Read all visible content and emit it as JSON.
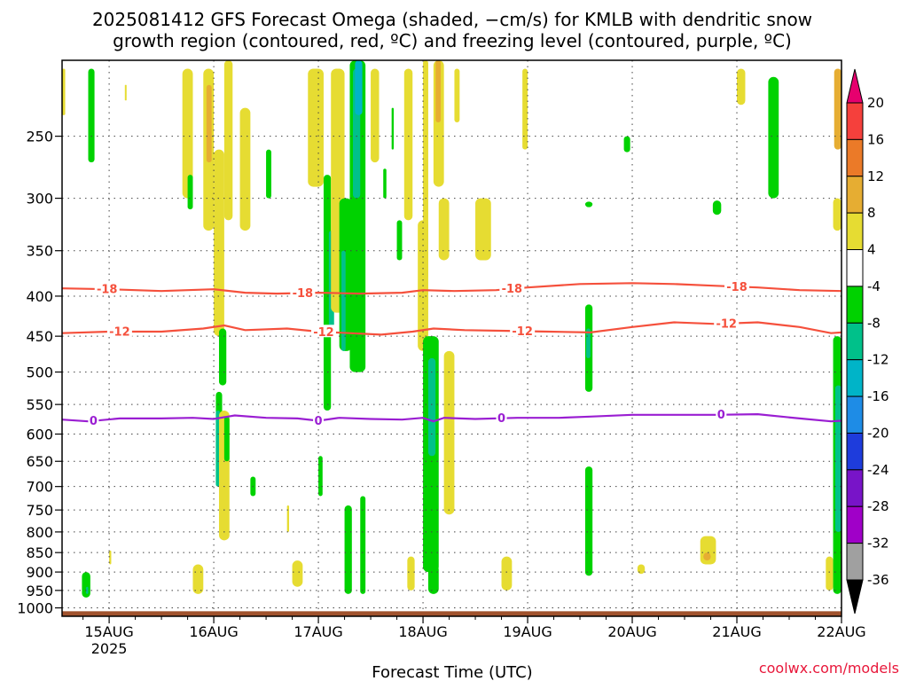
{
  "title": {
    "line1": "2025081412 GFS Forecast Omega (shaded, −cm/s) for KMLB with dendritic snow",
    "line2": "growth region (contoured, red, ºC) and freezing level (contoured, purple, ºC)"
  },
  "credit": "coolwx.com/models",
  "chart_data": {
    "type": "heatmap",
    "xlabel": "Forecast Time (UTC)",
    "ylabel": "",
    "x_ticks": [
      "15AUG",
      "16AUG",
      "17AUG",
      "18AUG",
      "19AUG",
      "20AUG",
      "21AUG",
      "22AUG"
    ],
    "x_year_label": "2025",
    "x_range_days": [
      14.55,
      22.0
    ],
    "y_ticks": [
      250,
      300,
      350,
      400,
      450,
      500,
      550,
      600,
      650,
      700,
      750,
      800,
      850,
      900,
      950,
      1000
    ],
    "y_range_hpa": [
      200,
      1025
    ],
    "y_scale": "log",
    "grid": true,
    "colorbar": {
      "labels": [
        "20",
        "16",
        "12",
        "8",
        "4",
        "-4",
        "-8",
        "-12",
        "-16",
        "-20",
        "-24",
        "-28",
        "-32",
        "-36"
      ],
      "colors": [
        "#e6006e",
        "#f5403c",
        "#eb7a28",
        "#e6ad32",
        "#e6dc32",
        "#ffffff",
        "#00d200",
        "#00c18a",
        "#00b4c8",
        "#1e8ce6",
        "#1e3cdc",
        "#7814c8",
        "#a000c8",
        "#a0a0a0",
        "#000000"
      ]
    },
    "contours": [
      {
        "name": "-18",
        "color": "#f5503c",
        "points": [
          [
            14.55,
            391
          ],
          [
            15.0,
            392
          ],
          [
            15.5,
            394
          ],
          [
            16.0,
            392
          ],
          [
            16.3,
            396
          ],
          [
            16.6,
            397
          ],
          [
            17.0,
            396
          ],
          [
            17.4,
            397
          ],
          [
            17.8,
            396
          ],
          [
            18.0,
            393
          ],
          [
            18.3,
            394
          ],
          [
            18.7,
            393
          ],
          [
            19.0,
            390
          ],
          [
            19.5,
            386
          ],
          [
            20.0,
            385
          ],
          [
            20.4,
            386
          ],
          [
            20.8,
            388
          ],
          [
            21.2,
            390
          ],
          [
            21.6,
            393
          ],
          [
            22.0,
            394
          ]
        ],
        "labels_at": [
          14.98,
          16.85,
          18.85,
          21.0
        ]
      },
      {
        "name": "-12",
        "color": "#f5503c",
        "points": [
          [
            14.55,
            446
          ],
          [
            15.0,
            444
          ],
          [
            15.5,
            444
          ],
          [
            15.9,
            440
          ],
          [
            16.1,
            436
          ],
          [
            16.3,
            442
          ],
          [
            16.7,
            440
          ],
          [
            17.0,
            444
          ],
          [
            17.3,
            446
          ],
          [
            17.6,
            448
          ],
          [
            17.9,
            444
          ],
          [
            18.1,
            440
          ],
          [
            18.4,
            442
          ],
          [
            18.8,
            443
          ],
          [
            19.2,
            444
          ],
          [
            19.6,
            445
          ],
          [
            20.0,
            438
          ],
          [
            20.4,
            432
          ],
          [
            20.8,
            434
          ],
          [
            21.2,
            432
          ],
          [
            21.6,
            438
          ],
          [
            21.9,
            446
          ],
          [
            22.0,
            445
          ]
        ],
        "labels_at": [
          15.1,
          17.05,
          18.95,
          20.9
        ]
      },
      {
        "name": "0",
        "color": "#9a1ed2",
        "points": [
          [
            14.55,
            575
          ],
          [
            14.8,
            578
          ],
          [
            15.1,
            573
          ],
          [
            15.5,
            573
          ],
          [
            15.8,
            572
          ],
          [
            16.0,
            574
          ],
          [
            16.2,
            568
          ],
          [
            16.5,
            572
          ],
          [
            16.8,
            573
          ],
          [
            17.0,
            577
          ],
          [
            17.2,
            572
          ],
          [
            17.5,
            574
          ],
          [
            17.8,
            575
          ],
          [
            18.0,
            572
          ],
          [
            18.1,
            578
          ],
          [
            18.2,
            572
          ],
          [
            18.5,
            574
          ],
          [
            18.9,
            572
          ],
          [
            19.3,
            572
          ],
          [
            19.6,
            570
          ],
          [
            20.0,
            567
          ],
          [
            20.4,
            567
          ],
          [
            20.8,
            567
          ],
          [
            21.2,
            566
          ],
          [
            21.6,
            573
          ],
          [
            21.9,
            578
          ],
          [
            22.0,
            577
          ]
        ],
        "labels_at": [
          14.85,
          17.0,
          18.75,
          20.85
        ]
      }
    ],
    "omega_cells": [
      {
        "t": [
          14.55,
          14.58
        ],
        "p": [
          205,
          235
        ],
        "c": 4
      },
      {
        "t": [
          14.8,
          14.86
        ],
        "p": [
          205,
          270
        ],
        "c": 6
      },
      {
        "t": [
          14.74,
          14.82
        ],
        "p": [
          900,
          970
        ],
        "c": 6
      },
      {
        "t": [
          14.78,
          14.8
        ],
        "p": [
          940,
          960
        ],
        "c": 7
      },
      {
        "t": [
          15.0,
          15.02
        ],
        "p": [
          845,
          880
        ],
        "c": 4
      },
      {
        "t": [
          15.15,
          15.16
        ],
        "p": [
          215,
          225
        ],
        "c": 4
      },
      {
        "t": [
          15.7,
          15.8
        ],
        "p": [
          205,
          300
        ],
        "c": 4
      },
      {
        "t": [
          15.75,
          15.8
        ],
        "p": [
          280,
          310
        ],
        "c": 6
      },
      {
        "t": [
          15.9,
          16.0
        ],
        "p": [
          205,
          330
        ],
        "c": 4
      },
      {
        "t": [
          15.93,
          15.98
        ],
        "p": [
          215,
          270
        ],
        "c": 3
      },
      {
        "t": [
          16.0,
          16.1
        ],
        "p": [
          260,
          450
        ],
        "c": 4
      },
      {
        "t": [
          16.02,
          16.08
        ],
        "p": [
          530,
          700
        ],
        "c": 6
      },
      {
        "t": [
          16.02,
          16.06
        ],
        "p": [
          560,
          700
        ],
        "c": 7
      },
      {
        "t": [
          16.05,
          16.12
        ],
        "p": [
          440,
          520
        ],
        "c": 6
      },
      {
        "t": [
          16.05,
          16.15
        ],
        "p": [
          560,
          820
        ],
        "c": 4
      },
      {
        "t": [
          16.1,
          16.15
        ],
        "p": [
          570,
          650
        ],
        "c": 6
      },
      {
        "t": [
          15.8,
          15.9
        ],
        "p": [
          880,
          960
        ],
        "c": 4
      },
      {
        "t": [
          16.1,
          16.18
        ],
        "p": [
          200,
          320
        ],
        "c": 4
      },
      {
        "t": [
          16.35,
          16.4
        ],
        "p": [
          680,
          720
        ],
        "c": 6
      },
      {
        "t": [
          16.25,
          16.35
        ],
        "p": [
          230,
          330
        ],
        "c": 4
      },
      {
        "t": [
          16.5,
          16.55
        ],
        "p": [
          260,
          300
        ],
        "c": 6
      },
      {
        "t": [
          16.7,
          16.72
        ],
        "p": [
          740,
          800
        ],
        "c": 4
      },
      {
        "t": [
          16.75,
          16.85
        ],
        "p": [
          870,
          940
        ],
        "c": 4
      },
      {
        "t": [
          16.9,
          17.05
        ],
        "p": [
          205,
          290
        ],
        "c": 4
      },
      {
        "t": [
          17.0,
          17.04
        ],
        "p": [
          640,
          720
        ],
        "c": 6
      },
      {
        "t": [
          17.05,
          17.12
        ],
        "p": [
          280,
          560
        ],
        "c": 6
      },
      {
        "t": [
          17.1,
          17.15
        ],
        "p": [
          330,
          450
        ],
        "c": 7
      },
      {
        "t": [
          17.12,
          17.25
        ],
        "p": [
          205,
          420
        ],
        "c": 4
      },
      {
        "t": [
          17.2,
          17.32
        ],
        "p": [
          300,
          470
        ],
        "c": 6
      },
      {
        "t": [
          17.22,
          17.26
        ],
        "p": [
          350,
          470
        ],
        "c": 7
      },
      {
        "t": [
          17.25,
          17.32
        ],
        "p": [
          740,
          960
        ],
        "c": 6
      },
      {
        "t": [
          17.3,
          17.45
        ],
        "p": [
          200,
          500
        ],
        "c": 6
      },
      {
        "t": [
          17.33,
          17.4
        ],
        "p": [
          205,
          300
        ],
        "c": 7
      },
      {
        "t": [
          17.35,
          17.42
        ],
        "p": [
          200,
          235
        ],
        "c": 8
      },
      {
        "t": [
          17.4,
          17.45
        ],
        "p": [
          720,
          960
        ],
        "c": 6
      },
      {
        "t": [
          17.5,
          17.58
        ],
        "p": [
          205,
          270
        ],
        "c": 4
      },
      {
        "t": [
          17.62,
          17.65
        ],
        "p": [
          275,
          300
        ],
        "c": 6
      },
      {
        "t": [
          17.7,
          17.72
        ],
        "p": [
          230,
          260
        ],
        "c": 6
      },
      {
        "t": [
          17.75,
          17.8
        ],
        "p": [
          320,
          360
        ],
        "c": 6
      },
      {
        "t": [
          17.82,
          17.9
        ],
        "p": [
          205,
          320
        ],
        "c": 4
      },
      {
        "t": [
          17.85,
          17.92
        ],
        "p": [
          860,
          950
        ],
        "c": 4
      },
      {
        "t": [
          17.95,
          18.05
        ],
        "p": [
          320,
          470
        ],
        "c": 4
      },
      {
        "t": [
          18.0,
          18.15
        ],
        "p": [
          450,
          900
        ],
        "c": 6
      },
      {
        "t": [
          18.05,
          18.12
        ],
        "p": [
          480,
          640
        ],
        "c": 7
      },
      {
        "t": [
          18.0,
          18.05
        ],
        "p": [
          200,
          380
        ],
        "c": 4
      },
      {
        "t": [
          18.1,
          18.2
        ],
        "p": [
          200,
          290
        ],
        "c": 4
      },
      {
        "t": [
          18.12,
          18.17
        ],
        "p": [
          200,
          240
        ],
        "c": 3
      },
      {
        "t": [
          18.15,
          18.25
        ],
        "p": [
          300,
          360
        ],
        "c": 4
      },
      {
        "t": [
          18.2,
          18.3
        ],
        "p": [
          470,
          760
        ],
        "c": 4
      },
      {
        "t": [
          18.05,
          18.15
        ],
        "p": [
          880,
          960
        ],
        "c": 6
      },
      {
        "t": [
          18.3,
          18.35
        ],
        "p": [
          205,
          240
        ],
        "c": 4
      },
      {
        "t": [
          18.5,
          18.65
        ],
        "p": [
          300,
          360
        ],
        "c": 4
      },
      {
        "t": [
          18.75,
          18.85
        ],
        "p": [
          860,
          950
        ],
        "c": 4
      },
      {
        "t": [
          18.95,
          19.0
        ],
        "p": [
          205,
          260
        ],
        "c": 4
      },
      {
        "t": [
          19.55,
          19.62
        ],
        "p": [
          410,
          530
        ],
        "c": 6
      },
      {
        "t": [
          19.56,
          19.6
        ],
        "p": [
          440,
          480
        ],
        "c": 7
      },
      {
        "t": [
          19.55,
          19.62
        ],
        "p": [
          660,
          910
        ],
        "c": 6
      },
      {
        "t": [
          19.55,
          19.62
        ],
        "p": [
          303,
          308
        ],
        "c": 6
      },
      {
        "t": [
          19.92,
          19.98
        ],
        "p": [
          250,
          262
        ],
        "c": 6
      },
      {
        "t": [
          20.05,
          20.12
        ],
        "p": [
          880,
          905
        ],
        "c": 4
      },
      {
        "t": [
          20.65,
          20.8
        ],
        "p": [
          810,
          880
        ],
        "c": 4
      },
      {
        "t": [
          20.68,
          20.75
        ],
        "p": [
          850,
          870
        ],
        "c": 3
      },
      {
        "t": [
          20.77,
          20.85
        ],
        "p": [
          302,
          315
        ],
        "c": 6
      },
      {
        "t": [
          21.0,
          21.08
        ],
        "p": [
          205,
          228
        ],
        "c": 4
      },
      {
        "t": [
          21.3,
          21.4
        ],
        "p": [
          210,
          300
        ],
        "c": 6
      },
      {
        "t": [
          21.85,
          21.92
        ],
        "p": [
          860,
          950
        ],
        "c": 4
      },
      {
        "t": [
          21.92,
          22.0
        ],
        "p": [
          300,
          330
        ],
        "c": 4
      },
      {
        "t": [
          21.93,
          22.0
        ],
        "p": [
          205,
          260
        ],
        "c": 3
      },
      {
        "t": [
          21.92,
          22.0
        ],
        "p": [
          450,
          960
        ],
        "c": 6
      },
      {
        "t": [
          21.94,
          22.0
        ],
        "p": [
          520,
          800
        ],
        "c": 7
      }
    ],
    "ground_pressure_hpa": 1010
  }
}
